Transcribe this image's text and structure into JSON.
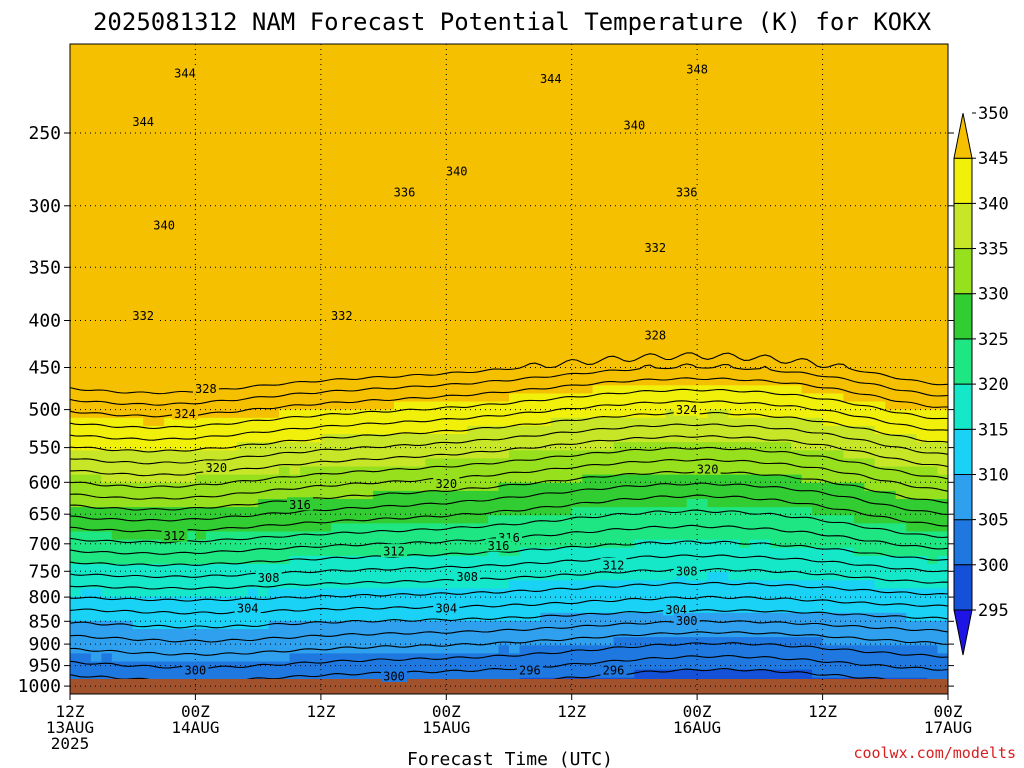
{
  "chart_data": {
    "type": "heatmap",
    "title": "2025081312 NAM Forecast Potential Temperature (K) for KOKX",
    "xlabel": "Forecast Time (UTC)",
    "ylabel": "",
    "x_ticks": [
      {
        "l1": "12Z",
        "l2": "13AUG",
        "l3": "2025",
        "h": 0
      },
      {
        "l1": "00Z",
        "l2": "14AUG",
        "l3": "",
        "h": 12
      },
      {
        "l1": "12Z",
        "l2": "",
        "l3": "",
        "h": 24
      },
      {
        "l1": "00Z",
        "l2": "15AUG",
        "l3": "",
        "h": 36
      },
      {
        "l1": "12Z",
        "l2": "",
        "l3": "",
        "h": 48
      },
      {
        "l1": "00Z",
        "l2": "16AUG",
        "l3": "",
        "h": 60
      },
      {
        "l1": "12Z",
        "l2": "",
        "l3": "",
        "h": 72
      },
      {
        "l1": "00Z",
        "l2": "17AUG",
        "l3": "",
        "h": 84
      }
    ],
    "xlim": [
      0,
      84
    ],
    "y_ticks": [
      250,
      300,
      350,
      400,
      450,
      500,
      550,
      600,
      650,
      700,
      750,
      800,
      850,
      900,
      950,
      1000
    ],
    "ylim": [
      200,
      1020
    ],
    "y_scale": "log",
    "grid": true,
    "colorbar": {
      "levels": [
        295,
        300,
        305,
        310,
        315,
        320,
        325,
        330,
        335,
        340,
        345,
        350
      ],
      "colors": [
        "#1e14e6",
        "#1450d8",
        "#1e78e0",
        "#2ea0ee",
        "#19d2f5",
        "#15e8c8",
        "#1ee682",
        "#32cd32",
        "#96e01e",
        "#c8e628",
        "#f0f00a",
        "#f5c000"
      ]
    },
    "contour_labels": [
      {
        "v": "344",
        "h": 11,
        "p": 215
      },
      {
        "v": "344",
        "h": 7,
        "p": 243
      },
      {
        "v": "340",
        "h": 9,
        "p": 315
      },
      {
        "v": "332",
        "h": 7,
        "p": 395
      },
      {
        "v": "328",
        "h": 13,
        "p": 474
      },
      {
        "v": "324",
        "h": 11,
        "p": 505
      },
      {
        "v": "320",
        "h": 14,
        "p": 578
      },
      {
        "v": "316",
        "h": 22,
        "p": 634
      },
      {
        "v": "312",
        "h": 10,
        "p": 686
      },
      {
        "v": "308",
        "h": 19,
        "p": 762
      },
      {
        "v": "304",
        "h": 17,
        "p": 822
      },
      {
        "v": "300",
        "h": 12,
        "p": 960
      },
      {
        "v": "344",
        "h": 46,
        "p": 218
      },
      {
        "v": "348",
        "h": 60,
        "p": 213
      },
      {
        "v": "340",
        "h": 37,
        "p": 275
      },
      {
        "v": "336",
        "h": 32,
        "p": 290
      },
      {
        "v": "332",
        "h": 26,
        "p": 395
      },
      {
        "v": "340",
        "h": 54,
        "p": 245
      },
      {
        "v": "336",
        "h": 59,
        "p": 290
      },
      {
        "v": "332",
        "h": 56,
        "p": 333
      },
      {
        "v": "328",
        "h": 56,
        "p": 415
      },
      {
        "v": "324",
        "h": 59,
        "p": 500
      },
      {
        "v": "320",
        "h": 36,
        "p": 602
      },
      {
        "v": "320",
        "h": 61,
        "p": 580
      },
      {
        "v": "316",
        "h": 42,
        "p": 689
      },
      {
        "v": "312",
        "h": 31,
        "p": 713
      },
      {
        "v": "316",
        "h": 41,
        "p": 703
      },
      {
        "v": "312",
        "h": 52,
        "p": 738
      },
      {
        "v": "308",
        "h": 38,
        "p": 760
      },
      {
        "v": "308",
        "h": 59,
        "p": 749
      },
      {
        "v": "304",
        "h": 36,
        "p": 822
      },
      {
        "v": "304",
        "h": 58,
        "p": 825
      },
      {
        "v": "300",
        "h": 59,
        "p": 848
      },
      {
        "v": "300",
        "h": 31,
        "p": 975
      },
      {
        "v": "296",
        "h": 44,
        "p": 960
      },
      {
        "v": "296",
        "h": 52,
        "p": 960
      }
    ]
  },
  "credit": "coolwx.com/modelts"
}
